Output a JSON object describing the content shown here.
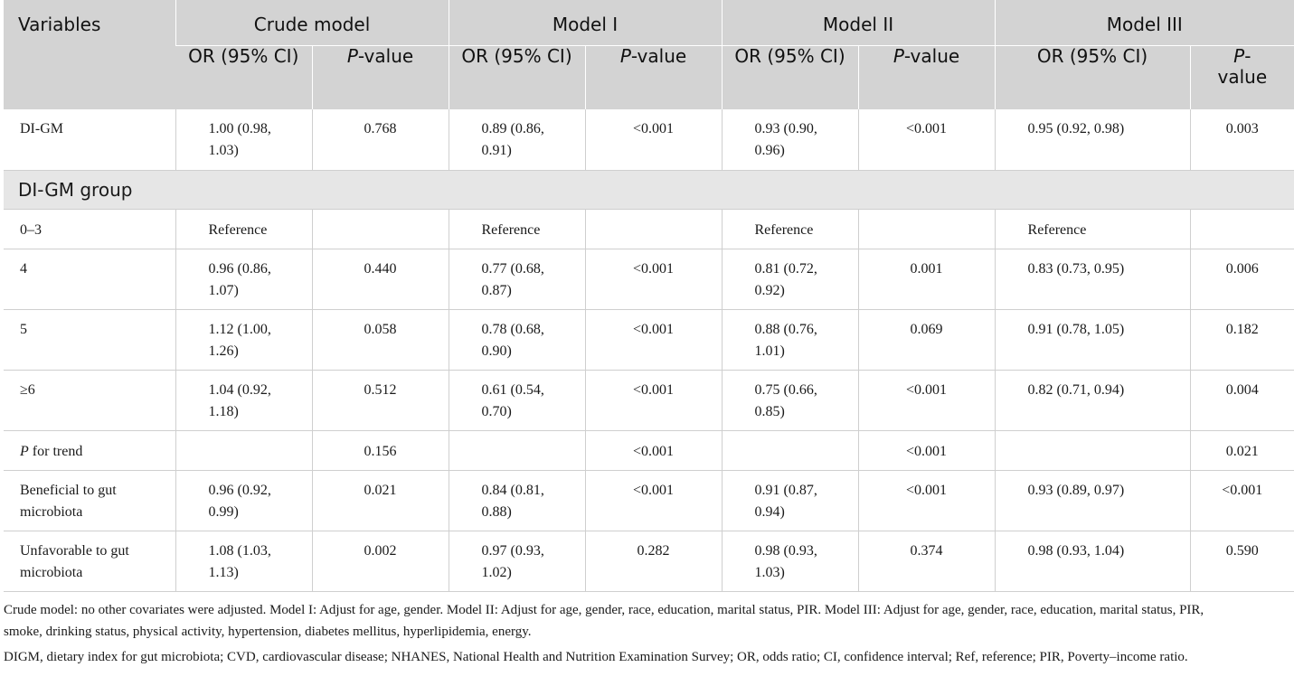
{
  "header": {
    "variables": "Variables",
    "models": [
      "Crude model",
      "Model I",
      "Model II",
      "Model III"
    ],
    "or_label": "OR (95% CI)",
    "p_label_italic": "P",
    "p_label_rest": "-value"
  },
  "rows": {
    "digm": {
      "label": "DI-GM",
      "v": [
        "1.00 (0.98, 1.03)",
        "0.768",
        "0.89 (0.86, 0.91)",
        "<0.001",
        "0.93 (0.90, 0.96)",
        "<0.001",
        "0.95 (0.92, 0.98)",
        "0.003"
      ]
    },
    "group_label": "DI-GM group",
    "g03": {
      "label": "0–3",
      "v": [
        "Reference",
        "",
        "Reference",
        "",
        "Reference",
        "",
        "Reference",
        ""
      ]
    },
    "g4": {
      "label": "4",
      "v": [
        "0.96 (0.86, 1.07)",
        "0.440",
        "0.77 (0.68, 0.87)",
        "<0.001",
        "0.81 (0.72, 0.92)",
        "0.001",
        "0.83 (0.73, 0.95)",
        "0.006"
      ]
    },
    "g5": {
      "label": "5",
      "v": [
        "1.12 (1.00, 1.26)",
        "0.058",
        "0.78 (0.68, 0.90)",
        "<0.001",
        "0.88 (0.76, 1.01)",
        "0.069",
        "0.91 (0.78, 1.05)",
        "0.182"
      ]
    },
    "g6": {
      "label": "≥6",
      "v": [
        "1.04 (0.92, 1.18)",
        "0.512",
        "0.61 (0.54, 0.70)",
        "<0.001",
        "0.75 (0.66, 0.85)",
        "<0.001",
        "0.82 (0.71, 0.94)",
        "0.004"
      ]
    },
    "trend": {
      "label_italic": "P",
      "label_rest": " for trend",
      "v": [
        "",
        "0.156",
        "",
        "<0.001",
        "",
        "<0.001",
        "",
        "0.021"
      ]
    },
    "beneficial": {
      "label": "Beneficial to gut microbiota",
      "v": [
        "0.96 (0.92, 0.99)",
        "0.021",
        "0.84 (0.81, 0.88)",
        "<0.001",
        "0.91 (0.87, 0.94)",
        "<0.001",
        "0.93 (0.89, 0.97)",
        "<0.001"
      ]
    },
    "unfavorable": {
      "label": "Unfavorable to gut microbiota",
      "v": [
        "1.08 (1.03, 1.13)",
        "0.002",
        "0.97 (0.93, 1.02)",
        "0.282",
        "0.98 (0.93, 1.03)",
        "0.374",
        "0.98 (0.93, 1.04)",
        "0.590"
      ]
    }
  },
  "footnotes": [
    "Crude model: no other covariates were adjusted. Model I: Adjust for age, gender. Model II: Adjust for age, gender, race, education, marital status, PIR. Model III: Adjust for age, gender, race, education, marital status, PIR, smoke, drinking status, physical activity, hypertension, diabetes mellitus, hyperlipidemia, energy.",
    "DIGM, dietary index for gut microbiota; CVD, cardiovascular disease; NHANES, National Health and Nutrition Examination Survey; OR, odds ratio; CI, confidence interval; Ref, reference; PIR, Poverty–income ratio."
  ]
}
